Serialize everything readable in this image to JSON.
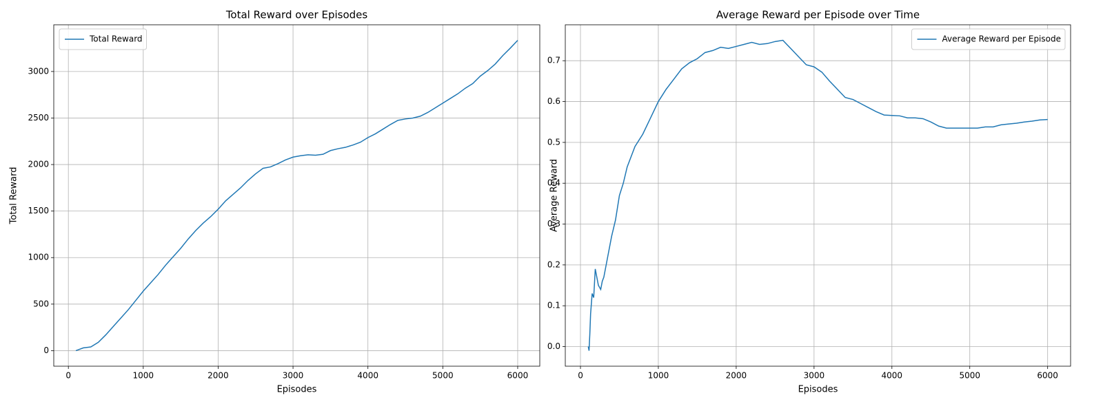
{
  "chart_data": [
    {
      "type": "line",
      "title": "Total Reward over Episodes",
      "x_label": "Episodes",
      "y_label": "Total Reward",
      "x": [
        100,
        200,
        300,
        400,
        500,
        600,
        700,
        800,
        900,
        1000,
        1100,
        1200,
        1300,
        1400,
        1500,
        1600,
        1700,
        1800,
        1900,
        2000,
        2100,
        2200,
        2300,
        2400,
        2500,
        2600,
        2700,
        2800,
        2900,
        3000,
        3100,
        3200,
        3300,
        3400,
        3500,
        3600,
        3700,
        3800,
        3900,
        4000,
        4100,
        4200,
        4300,
        4400,
        4500,
        4600,
        4700,
        4800,
        4900,
        5000,
        5100,
        5200,
        5300,
        5400,
        5500,
        5600,
        5700,
        5800,
        5900,
        6000
      ],
      "series": [
        {
          "name": "Total Reward",
          "color": "#1f77b4",
          "values": [
            0,
            30,
            40,
            90,
            170,
            260,
            350,
            440,
            540,
            640,
            730,
            820,
            920,
            1010,
            1100,
            1200,
            1290,
            1370,
            1440,
            1520,
            1610,
            1680,
            1750,
            1830,
            1900,
            1960,
            1975,
            2010,
            2050,
            2080,
            2095,
            2105,
            2100,
            2110,
            2150,
            2170,
            2185,
            2210,
            2240,
            2290,
            2330,
            2380,
            2430,
            2475,
            2490,
            2500,
            2520,
            2560,
            2610,
            2660,
            2710,
            2760,
            2820,
            2870,
            2950,
            3010,
            3080,
            3170,
            3250,
            3335
          ]
        }
      ],
      "xlim": [
        -195,
        6295
      ],
      "xticks": [
        0,
        1000,
        2000,
        3000,
        4000,
        5000,
        6000
      ],
      "ylim": [
        -167,
        3502
      ],
      "yticks": [
        0,
        500,
        1000,
        1500,
        2000,
        2500,
        3000
      ],
      "grid": true,
      "legend": "upper-left"
    },
    {
      "type": "line",
      "title": "Average Reward per Episode over Time",
      "x_label": "Episodes",
      "y_label": "Average Reward",
      "x": [
        100,
        110,
        120,
        130,
        150,
        170,
        190,
        210,
        230,
        260,
        280,
        300,
        350,
        400,
        450,
        500,
        550,
        600,
        700,
        800,
        900,
        1000,
        1100,
        1200,
        1300,
        1400,
        1500,
        1600,
        1700,
        1800,
        1900,
        2000,
        2100,
        2200,
        2300,
        2400,
        2500,
        2600,
        2700,
        2800,
        2900,
        3000,
        3100,
        3200,
        3300,
        3400,
        3500,
        3600,
        3700,
        3800,
        3900,
        4000,
        4100,
        4200,
        4300,
        4400,
        4500,
        4600,
        4700,
        4800,
        4900,
        5000,
        5100,
        5200,
        5300,
        5400,
        5500,
        5600,
        5700,
        5800,
        5900,
        6000
      ],
      "series": [
        {
          "name": "Average Reward per Episode",
          "color": "#1f77b4",
          "values": [
            0.0,
            -0.01,
            0.03,
            0.08,
            0.13,
            0.12,
            0.19,
            0.17,
            0.15,
            0.14,
            0.16,
            0.17,
            0.22,
            0.27,
            0.31,
            0.37,
            0.4,
            0.44,
            0.49,
            0.52,
            0.56,
            0.6,
            0.63,
            0.655,
            0.68,
            0.695,
            0.705,
            0.72,
            0.725,
            0.733,
            0.73,
            0.735,
            0.74,
            0.745,
            0.74,
            0.742,
            0.747,
            0.75,
            0.73,
            0.71,
            0.69,
            0.685,
            0.672,
            0.65,
            0.63,
            0.61,
            0.605,
            0.595,
            0.585,
            0.575,
            0.567,
            0.566,
            0.565,
            0.56,
            0.56,
            0.558,
            0.55,
            0.54,
            0.535,
            0.535,
            0.535,
            0.535,
            0.535,
            0.538,
            0.538,
            0.543,
            0.545,
            0.547,
            0.55,
            0.552,
            0.555,
            0.556
          ]
        }
      ],
      "xlim": [
        -195,
        6295
      ],
      "xticks": [
        0,
        1000,
        2000,
        3000,
        4000,
        5000,
        6000
      ],
      "ylim": [
        -0.048,
        0.788
      ],
      "yticks": [
        {
          "value": 0,
          "label": "0.0"
        },
        0.1,
        0.2,
        0.3,
        0.4,
        0.5,
        0.6,
        0.7
      ],
      "grid": true,
      "legend": "upper-right"
    }
  ]
}
